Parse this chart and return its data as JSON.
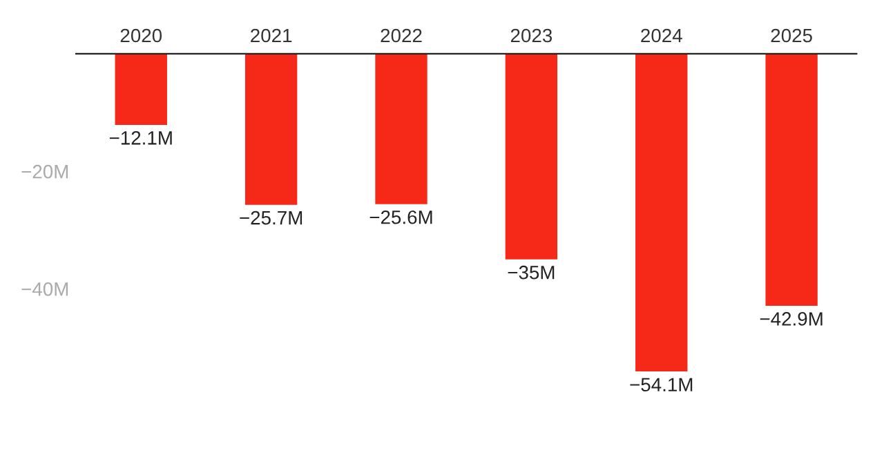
{
  "chart_data": {
    "type": "bar",
    "categories": [
      "2020",
      "2021",
      "2022",
      "2023",
      "2024",
      "2025"
    ],
    "values": [
      -12.1,
      -25.7,
      -25.6,
      -35,
      -54.1,
      -42.9
    ],
    "value_labels": [
      "−12.1M",
      "−25.7M",
      "−25.6M",
      "−35M",
      "−54.1M",
      "−42.9M"
    ],
    "color": "#f62817",
    "ylim": [
      -54.1,
      0
    ],
    "yticks": [
      {
        "value": -20,
        "label": "−20M"
      },
      {
        "value": -40,
        "label": "−40M"
      }
    ]
  }
}
